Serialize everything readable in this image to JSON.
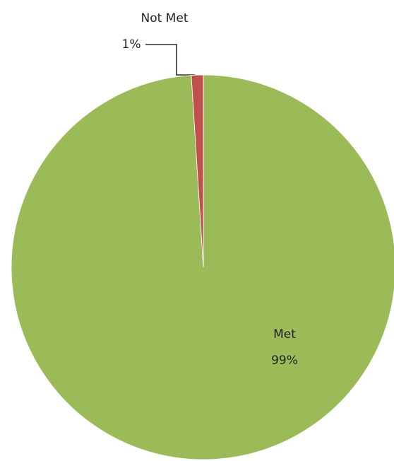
{
  "chart_data": {
    "type": "pie",
    "categories": [
      "Met",
      "Not Met"
    ],
    "values": [
      99,
      1
    ],
    "value_labels": [
      "99%",
      "1%"
    ],
    "colors": [
      "#9bbb59",
      "#c0504d"
    ]
  }
}
